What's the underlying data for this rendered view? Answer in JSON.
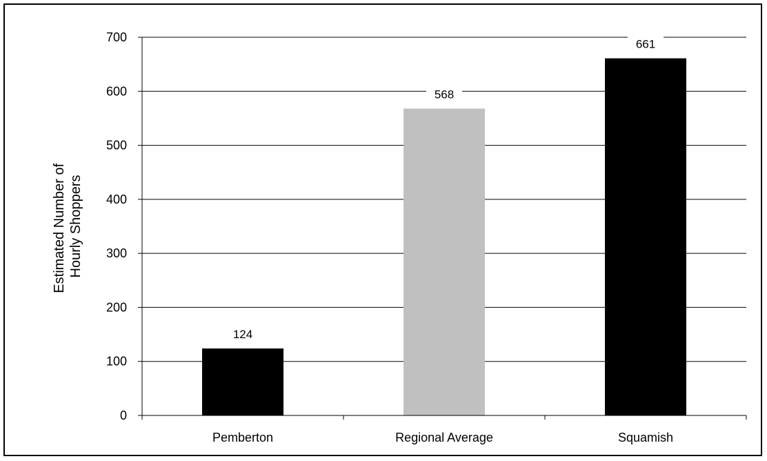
{
  "chart_data": {
    "type": "bar",
    "title": "",
    "xlabel": "",
    "ylabel_lines": [
      "Estimated Number of",
      "Hourly Shoppers"
    ],
    "categories": [
      "Pemberton",
      "Regional Average",
      "Squamish"
    ],
    "values": [
      124,
      568,
      661
    ],
    "data_labels": [
      "124",
      "568",
      "661"
    ],
    "bar_colors": [
      "#000000",
      "#c0c0c0",
      "#000000"
    ],
    "ylim": [
      0,
      700
    ],
    "yticks": [
      0,
      100,
      200,
      300,
      400,
      500,
      600,
      700
    ],
    "grid": true,
    "legend": "none"
  }
}
